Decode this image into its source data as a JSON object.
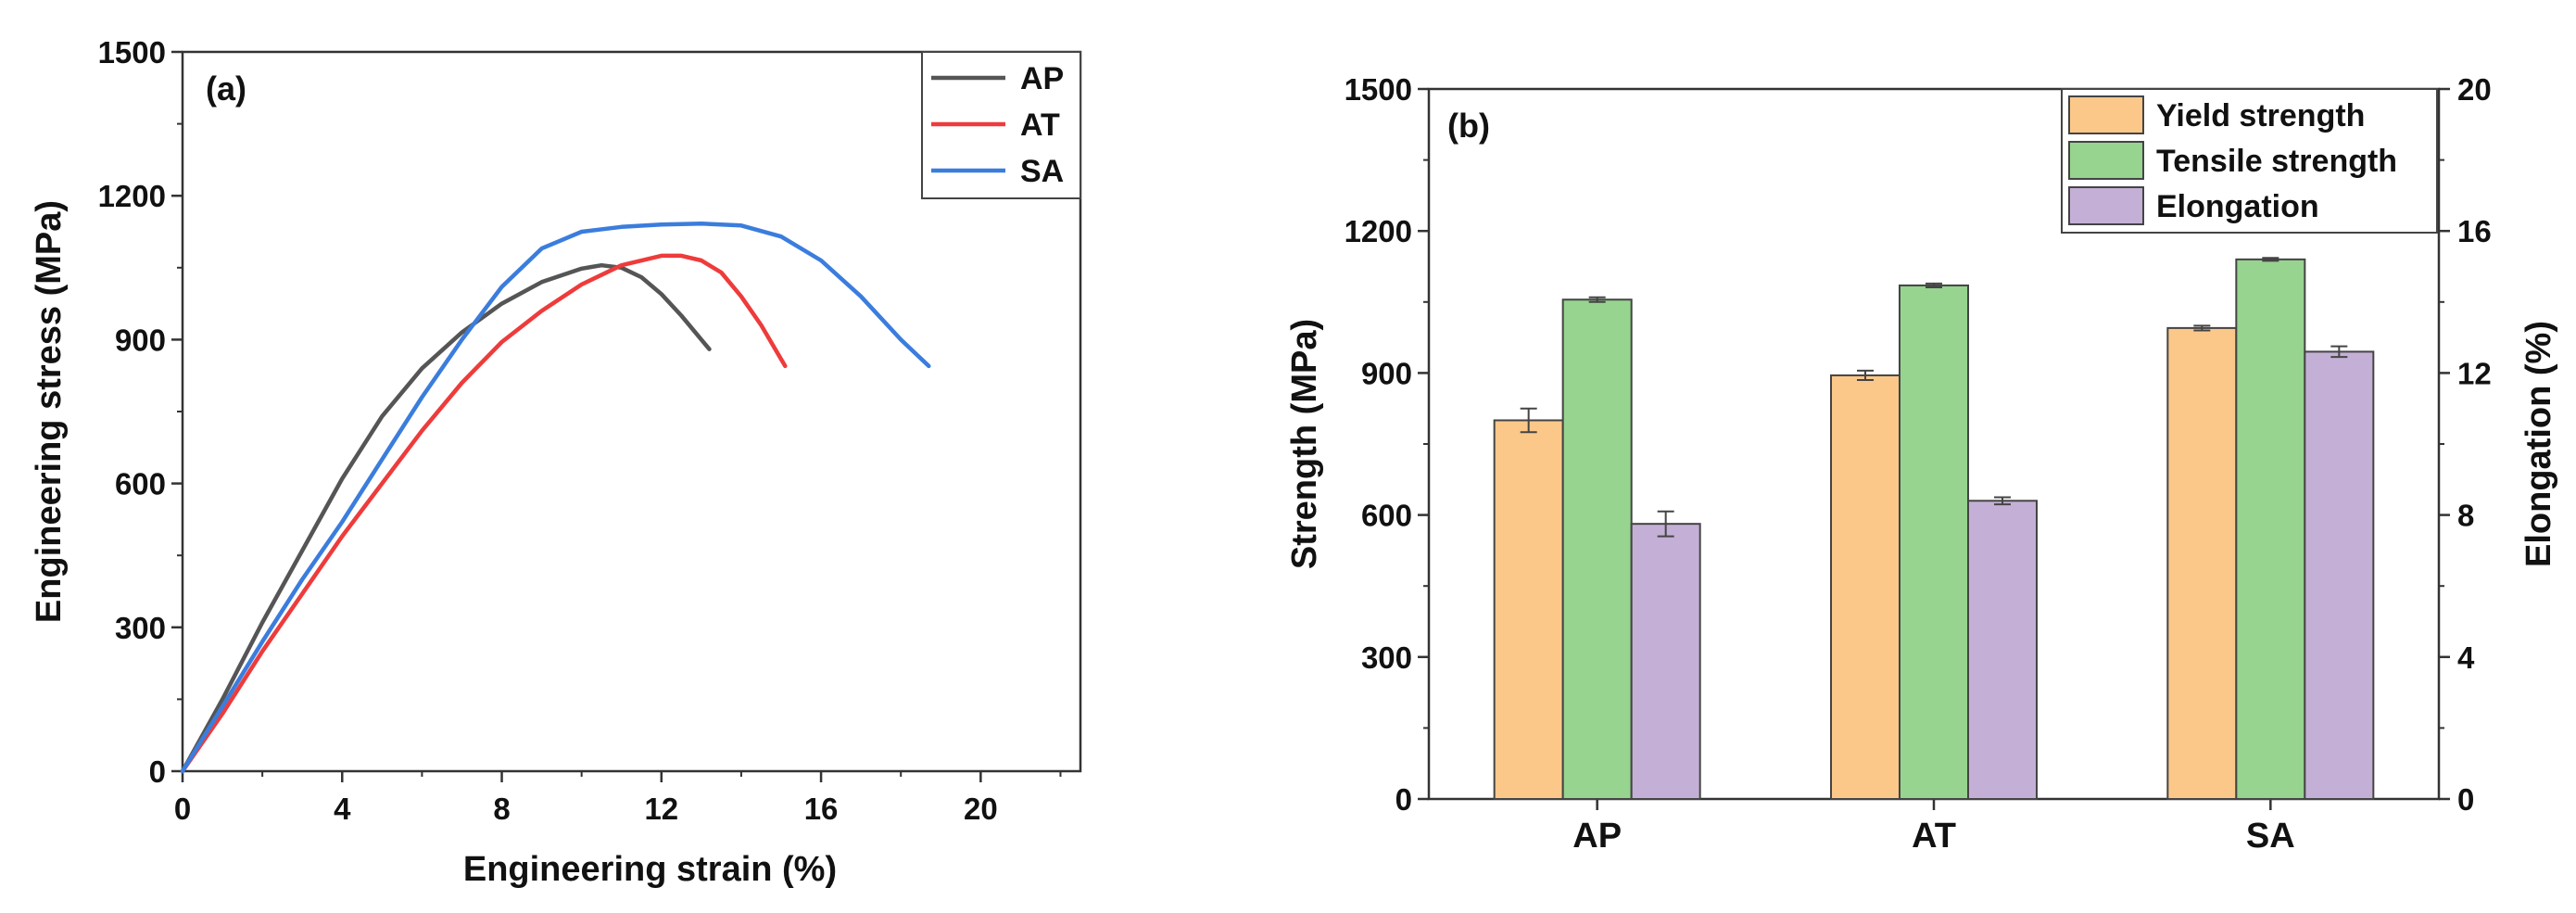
{
  "chart_data": [
    {
      "type": "line",
      "panel_label": "(a)",
      "xlabel": "Engineering strain (%)",
      "ylabel": "Engineering stress (MPa)",
      "xlim": [
        0,
        22.5
      ],
      "ylim": [
        0,
        1500
      ],
      "xticks": [
        0,
        4,
        8,
        12,
        16,
        20
      ],
      "yticks": [
        0,
        300,
        600,
        900,
        1200,
        1500
      ],
      "legend_position": "top-right",
      "series": [
        {
          "name": "AP",
          "color": "#555555",
          "x": [
            0,
            1,
            2,
            3,
            4,
            5,
            6,
            7,
            8,
            9,
            10,
            10.5,
            11,
            11.5,
            12,
            12.5,
            13.2
          ],
          "y": [
            0,
            150,
            310,
            460,
            610,
            740,
            840,
            915,
            975,
            1020,
            1048,
            1055,
            1050,
            1030,
            995,
            950,
            880
          ]
        },
        {
          "name": "AT",
          "color": "#ee3b3b",
          "x": [
            0,
            1,
            2,
            3,
            4,
            5,
            6,
            7,
            8,
            9,
            10,
            11,
            12,
            12.5,
            13,
            13.5,
            14,
            14.5,
            15.1
          ],
          "y": [
            0,
            120,
            250,
            370,
            490,
            600,
            710,
            810,
            895,
            960,
            1015,
            1055,
            1075,
            1075,
            1065,
            1040,
            990,
            930,
            845
          ]
        },
        {
          "name": "SA",
          "color": "#3b7ddd",
          "x": [
            0,
            1,
            2,
            3,
            4,
            5,
            6,
            7,
            8,
            9,
            10,
            11,
            12,
            13,
            14,
            15,
            16,
            17,
            18,
            18.7
          ],
          "y": [
            0,
            135,
            270,
            400,
            520,
            650,
            780,
            900,
            1010,
            1090,
            1125,
            1135,
            1140,
            1142,
            1138,
            1115,
            1065,
            990,
            900,
            845
          ]
        }
      ]
    },
    {
      "type": "bar",
      "panel_label": "(b)",
      "categories": [
        "AP",
        "AT",
        "SA"
      ],
      "ylabel": "Strength (MPa)",
      "y2label": "Elongation (%)",
      "ylim": [
        0,
        1500
      ],
      "y2lim": [
        0,
        20
      ],
      "yticks": [
        0,
        300,
        600,
        900,
        1200,
        1500
      ],
      "y2ticks": [
        0,
        4,
        8,
        12,
        16,
        20
      ],
      "legend_position": "top-right",
      "series": [
        {
          "name": "Yield strength",
          "axis": "left",
          "color": "#fbc88a",
          "values": [
            800,
            895,
            995
          ],
          "errors": [
            25,
            10,
            5
          ]
        },
        {
          "name": "Tensile strength",
          "axis": "left",
          "color": "#96d48f",
          "values": [
            1055,
            1085,
            1140
          ],
          "errors": [
            5,
            4,
            3
          ]
        },
        {
          "name": "Elongation",
          "axis": "right",
          "color": "#c4b0d6",
          "values": [
            7.75,
            8.4,
            12.6
          ],
          "errors": [
            0.35,
            0.1,
            0.15
          ]
        }
      ]
    }
  ]
}
